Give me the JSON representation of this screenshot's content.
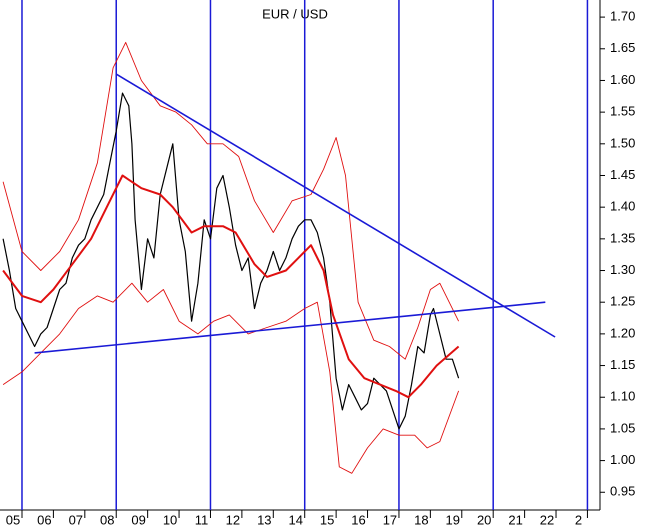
{
  "chart_data": {
    "type": "line",
    "title": "EUR / USD",
    "xlim": [
      2004.3,
      2023.4
    ],
    "ylim": [
      0.922,
      1.727
    ],
    "yticks": [
      0.95,
      {
        "value": 1.0,
        "label": "1.00"
      },
      1.05,
      {
        "value": 1.1,
        "label": "1.10"
      },
      1.15,
      {
        "value": 1.2,
        "label": "1.20"
      },
      1.25,
      {
        "value": 1.3,
        "label": "1.30"
      },
      1.35,
      {
        "value": 1.4,
        "label": "1.40"
      },
      1.45,
      {
        "value": 1.5,
        "label": "1.50"
      },
      1.55,
      {
        "value": 1.6,
        "label": "1.60"
      },
      1.65,
      {
        "value": 1.7,
        "label": "1.70"
      }
    ],
    "xticks": [
      {
        "value": 2005,
        "label": "05"
      },
      {
        "value": 2006,
        "label": "06"
      },
      {
        "value": 2007,
        "label": "07"
      },
      {
        "value": 2008,
        "label": "08"
      },
      {
        "value": 2009,
        "label": "09"
      },
      {
        "value": 2010,
        "label": "10"
      },
      {
        "value": 2011,
        "label": "11"
      },
      {
        "value": 2012,
        "label": "12"
      },
      {
        "value": 2013,
        "label": "13"
      },
      {
        "value": 2014,
        "label": "14"
      },
      {
        "value": 2015,
        "label": "15"
      },
      {
        "value": 2016,
        "label": "16"
      },
      {
        "value": 2017,
        "label": "17"
      },
      {
        "value": 2018,
        "label": "18"
      },
      {
        "value": 2019,
        "label": "19"
      },
      {
        "value": 2020,
        "label": "20"
      },
      {
        "value": 2021,
        "label": "21"
      },
      {
        "value": 2022,
        "label": "22"
      },
      {
        "value": 2023,
        "label": "2"
      }
    ],
    "vlines": [
      2005,
      2008,
      2011,
      2014,
      2017,
      2020,
      2023
    ],
    "vline_color": "#1a1ad6",
    "series": [
      {
        "color": "#000000",
        "width": 1.2,
        "x": [
          2004.4,
          2004.6,
          2004.8,
          2005.0,
          2005.2,
          2005.4,
          2005.6,
          2005.8,
          2006.0,
          2006.2,
          2006.4,
          2006.6,
          2006.8,
          2007.0,
          2007.2,
          2007.4,
          2007.6,
          2007.8,
          2008.0,
          2008.2,
          2008.4,
          2008.5,
          2008.6,
          2008.8,
          2009.0,
          2009.2,
          2009.4,
          2009.6,
          2009.8,
          2010.0,
          2010.2,
          2010.4,
          2010.6,
          2010.8,
          2011.0,
          2011.2,
          2011.4,
          2011.6,
          2011.8,
          2012.0,
          2012.2,
          2012.4,
          2012.6,
          2012.8,
          2013.0,
          2013.2,
          2013.4,
          2013.6,
          2013.8,
          2014.0,
          2014.2,
          2014.4,
          2014.6,
          2014.8,
          2015.0,
          2015.2,
          2015.4,
          2015.6,
          2015.8,
          2016.0,
          2016.2,
          2016.4,
          2016.6,
          2016.8,
          2017.0,
          2017.2,
          2017.4,
          2017.6,
          2017.8,
          2018.0,
          2018.1,
          2018.3,
          2018.5,
          2018.7,
          2018.9
        ],
        "values": [
          1.35,
          1.3,
          1.24,
          1.22,
          1.2,
          1.18,
          1.2,
          1.21,
          1.24,
          1.27,
          1.28,
          1.32,
          1.34,
          1.35,
          1.38,
          1.4,
          1.42,
          1.47,
          1.52,
          1.58,
          1.56,
          1.5,
          1.38,
          1.27,
          1.35,
          1.32,
          1.42,
          1.46,
          1.5,
          1.38,
          1.33,
          1.22,
          1.28,
          1.38,
          1.35,
          1.43,
          1.45,
          1.4,
          1.34,
          1.3,
          1.32,
          1.24,
          1.28,
          1.3,
          1.33,
          1.3,
          1.32,
          1.35,
          1.37,
          1.38,
          1.38,
          1.36,
          1.32,
          1.25,
          1.13,
          1.08,
          1.12,
          1.1,
          1.08,
          1.09,
          1.13,
          1.12,
          1.11,
          1.08,
          1.05,
          1.07,
          1.12,
          1.18,
          1.17,
          1.23,
          1.24,
          1.2,
          1.16,
          1.16,
          1.13
        ]
      },
      {
        "color": "#e01010",
        "width": 2,
        "x": [
          2004.4,
          2005.0,
          2005.6,
          2006.0,
          2006.6,
          2007.2,
          2007.8,
          2008.2,
          2008.8,
          2009.4,
          2009.8,
          2010.4,
          2010.8,
          2011.4,
          2011.8,
          2012.4,
          2012.8,
          2013.4,
          2013.8,
          2014.2,
          2014.6,
          2014.9,
          2015.4,
          2015.9,
          2016.4,
          2016.9,
          2017.3,
          2017.7,
          2018.2,
          2018.9
        ],
        "values": [
          1.3,
          1.26,
          1.25,
          1.27,
          1.31,
          1.35,
          1.41,
          1.45,
          1.43,
          1.42,
          1.4,
          1.36,
          1.37,
          1.37,
          1.36,
          1.31,
          1.29,
          1.3,
          1.32,
          1.34,
          1.3,
          1.23,
          1.16,
          1.13,
          1.12,
          1.11,
          1.1,
          1.12,
          1.15,
          1.18
        ]
      },
      {
        "color": "#e01010",
        "width": 0.9,
        "x": [
          2004.4,
          2005.0,
          2005.6,
          2006.2,
          2006.8,
          2007.4,
          2007.9,
          2008.3,
          2008.8,
          2009.4,
          2009.9,
          2010.4,
          2010.9,
          2011.4,
          2011.9,
          2012.4,
          2013.0,
          2013.6,
          2014.2,
          2014.6,
          2015.0,
          2015.3,
          2015.7,
          2016.2,
          2016.7,
          2017.2,
          2017.6,
          2018.0,
          2018.3,
          2018.9
        ],
        "values": [
          1.44,
          1.33,
          1.3,
          1.33,
          1.38,
          1.47,
          1.62,
          1.66,
          1.6,
          1.56,
          1.55,
          1.53,
          1.5,
          1.5,
          1.48,
          1.41,
          1.36,
          1.41,
          1.42,
          1.46,
          1.51,
          1.45,
          1.25,
          1.19,
          1.18,
          1.16,
          1.21,
          1.27,
          1.28,
          1.22
        ]
      },
      {
        "color": "#e01010",
        "width": 0.9,
        "x": [
          2004.4,
          2005.0,
          2005.6,
          2006.2,
          2006.8,
          2007.4,
          2007.9,
          2008.5,
          2009.0,
          2009.5,
          2010.0,
          2010.6,
          2011.1,
          2011.6,
          2012.2,
          2012.8,
          2013.4,
          2014.0,
          2014.4,
          2014.8,
          2015.1,
          2015.5,
          2016.0,
          2016.5,
          2017.0,
          2017.5,
          2017.9,
          2018.3,
          2018.9
        ],
        "values": [
          1.12,
          1.14,
          1.17,
          1.2,
          1.24,
          1.26,
          1.25,
          1.28,
          1.25,
          1.27,
          1.22,
          1.2,
          1.22,
          1.23,
          1.2,
          1.21,
          1.22,
          1.24,
          1.25,
          1.14,
          0.99,
          0.98,
          1.02,
          1.05,
          1.04,
          1.04,
          1.02,
          1.03,
          1.11
        ]
      },
      {
        "color": "#1a1ad6",
        "width": 1.6,
        "x": [
          2008.0,
          2021.97
        ],
        "values": [
          1.61,
          1.195
        ]
      },
      {
        "color": "#1a1ad6",
        "width": 1.6,
        "x": [
          2005.4,
          2021.66
        ],
        "values": [
          1.17,
          1.25
        ]
      }
    ]
  }
}
